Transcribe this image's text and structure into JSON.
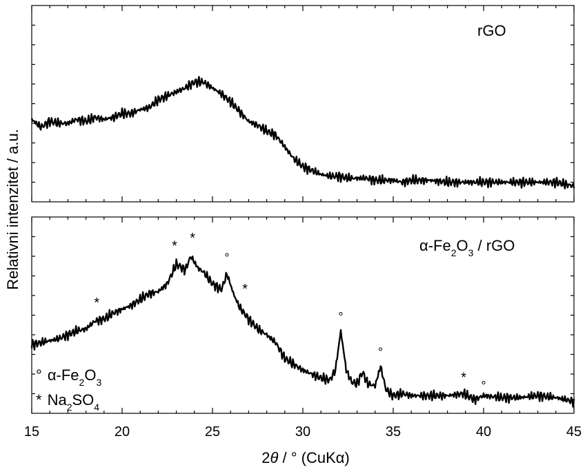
{
  "chart_data": {
    "type": "line",
    "xlabel_parts": {
      "two": "2",
      "theta": "θ",
      "rest": " / ° (CuKα)"
    },
    "ylabel": "Relativni intenzitet / a.u.",
    "xlim": [
      15,
      45
    ],
    "x_ticks": [
      "15",
      "20",
      "25",
      "30",
      "35",
      "40",
      "45"
    ],
    "grid": false,
    "panels": [
      {
        "label": "rGO",
        "ylim": [
          0,
          1
        ],
        "series": [
          {
            "x": [
              15.0,
              15.5,
              16.0,
              16.5,
              17.0,
              17.5,
              18.0,
              18.5,
              19.0,
              19.5,
              20.0,
              20.5,
              21.0,
              21.5,
              22.0,
              22.5,
              23.0,
              23.5,
              24.0,
              24.5,
              25.0,
              25.5,
              26.0,
              26.5,
              27.0,
              27.5,
              28.0,
              28.5,
              29.0,
              29.5,
              30.0,
              30.5,
              31.0,
              31.5,
              32.0,
              32.5,
              33.0,
              33.5,
              34.0,
              34.5,
              35.0,
              35.5,
              36.0,
              37.0,
              38.0,
              39.0,
              40.0,
              41.0,
              42.0,
              43.0,
              44.0,
              45.0
            ],
            "y": [
              0.42,
              0.38,
              0.41,
              0.4,
              0.4,
              0.42,
              0.41,
              0.43,
              0.42,
              0.43,
              0.45,
              0.45,
              0.47,
              0.48,
              0.52,
              0.54,
              0.56,
              0.58,
              0.61,
              0.61,
              0.58,
              0.55,
              0.51,
              0.46,
              0.41,
              0.39,
              0.36,
              0.34,
              0.28,
              0.22,
              0.18,
              0.16,
              0.14,
              0.13,
              0.13,
              0.12,
              0.12,
              0.12,
              0.11,
              0.11,
              0.11,
              0.1,
              0.11,
              0.11,
              0.1,
              0.1,
              0.1,
              0.1,
              0.1,
              0.1,
              0.1,
              0.08
            ]
          }
        ]
      },
      {
        "label_parts": {
          "alpha": "α",
          "fe": "-Fe",
          "s1": "2",
          "o": "O",
          "s2": "3",
          "tail": " / rGO"
        },
        "ylim": [
          0,
          1
        ],
        "series": [
          {
            "x": [
              15.0,
              15.5,
              16.0,
              16.5,
              17.0,
              17.5,
              18.0,
              18.5,
              19.0,
              19.5,
              20.0,
              20.5,
              21.0,
              21.5,
              22.0,
              22.5,
              23.0,
              23.5,
              23.8,
              24.2,
              24.5,
              25.0,
              25.5,
              25.8,
              26.2,
              26.5,
              27.0,
              27.5,
              28.0,
              28.5,
              29.0,
              29.5,
              30.0,
              30.5,
              31.0,
              31.5,
              31.8,
              32.1,
              32.4,
              32.7,
              33.0,
              33.3,
              33.6,
              34.0,
              34.3,
              34.6,
              35.0,
              35.5,
              36.0,
              37.0,
              38.0,
              38.9,
              39.5,
              40.0,
              41.0,
              42.0,
              43.0,
              44.0,
              45.0
            ],
            "y": [
              0.35,
              0.36,
              0.37,
              0.38,
              0.4,
              0.42,
              0.43,
              0.47,
              0.48,
              0.51,
              0.53,
              0.55,
              0.58,
              0.61,
              0.62,
              0.66,
              0.76,
              0.73,
              0.8,
              0.74,
              0.72,
              0.66,
              0.63,
              0.71,
              0.6,
              0.54,
              0.48,
              0.43,
              0.4,
              0.36,
              0.28,
              0.25,
              0.22,
              0.2,
              0.18,
              0.17,
              0.22,
              0.42,
              0.22,
              0.16,
              0.15,
              0.21,
              0.15,
              0.14,
              0.24,
              0.12,
              0.09,
              0.1,
              0.09,
              0.09,
              0.09,
              0.1,
              0.07,
              0.09,
              0.08,
              0.08,
              0.09,
              0.08,
              0.06
            ]
          }
        ],
        "markers": [
          {
            "symbol": "*",
            "x": 18.6,
            "y": 0.54
          },
          {
            "symbol": "*",
            "x": 22.9,
            "y": 0.83
          },
          {
            "symbol": "*",
            "x": 23.9,
            "y": 0.87
          },
          {
            "symbol": "°",
            "x": 25.8,
            "y": 0.77
          },
          {
            "symbol": "*",
            "x": 26.8,
            "y": 0.61
          },
          {
            "symbol": "°",
            "x": 32.1,
            "y": 0.47
          },
          {
            "symbol": "°",
            "x": 34.3,
            "y": 0.29
          },
          {
            "symbol": "*",
            "x": 38.9,
            "y": 0.16
          },
          {
            "symbol": "°",
            "x": 40.0,
            "y": 0.12
          }
        ],
        "legend": {
          "position": "bottom-left",
          "entries": [
            {
              "symbol": "°",
              "alpha": "α",
              "name": "-Fe",
              "s1": "2",
              "mid": "O",
              "s2": "3"
            },
            {
              "symbol": "*",
              "name": "Na",
              "s1": "2",
              "mid": "SO",
              "s2": "4"
            }
          ]
        }
      }
    ]
  }
}
